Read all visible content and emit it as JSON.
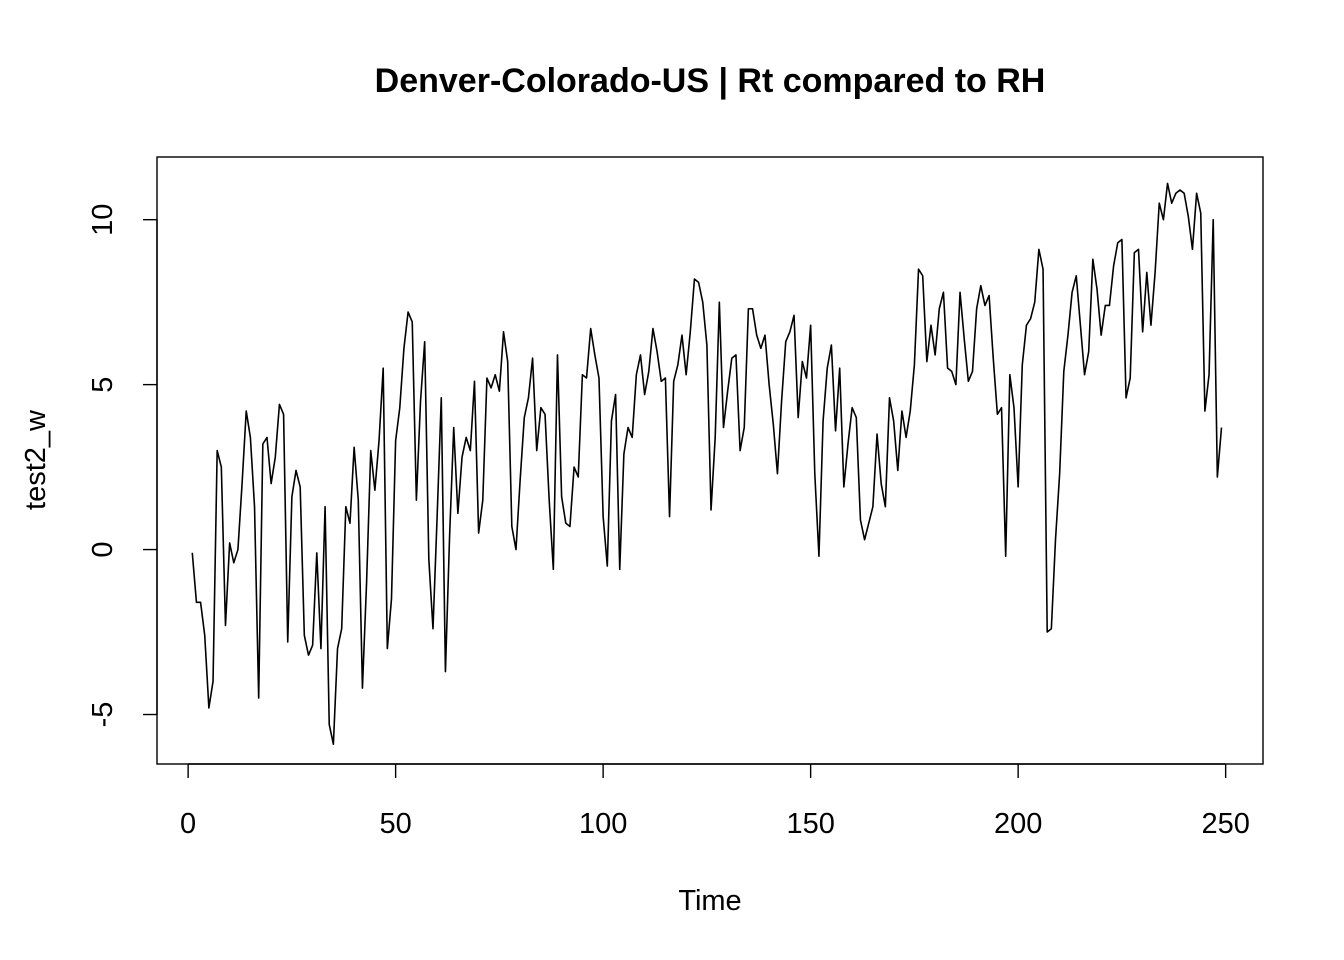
{
  "chart_data": {
    "type": "line",
    "title": "Denver-Colorado-US | Rt compared to RH",
    "xlabel": "Time",
    "ylabel": "test2_w",
    "xlim": [
      -7.5,
      259
    ],
    "ylim": [
      -6.5,
      11.9
    ],
    "x_ticks": [
      0,
      50,
      100,
      150,
      200,
      250
    ],
    "y_ticks": [
      -5,
      0,
      5,
      10
    ],
    "grid": false,
    "legend": "none",
    "x_start": 1,
    "series": [
      {
        "values": [
          -0.1,
          -1.6,
          -1.6,
          -2.6,
          -4.8,
          -4.0,
          3.0,
          2.5,
          -2.3,
          0.2,
          -0.4,
          0.0,
          2.0,
          4.2,
          3.4,
          1.3,
          -4.5,
          3.2,
          3.4,
          2.0,
          2.8,
          4.4,
          4.1,
          -2.8,
          1.6,
          2.4,
          1.9,
          -2.6,
          -3.2,
          -2.9,
          -0.1,
          -3.0,
          1.3,
          -5.3,
          -5.9,
          -3.0,
          -2.4,
          1.3,
          0.8,
          3.1,
          1.5,
          -4.2,
          -1.0,
          3.0,
          1.8,
          3.3,
          5.5,
          -3.0,
          -1.5,
          3.3,
          4.3,
          6.1,
          7.2,
          6.9,
          1.5,
          4.5,
          6.3,
          -0.3,
          -2.4,
          1.0,
          4.6,
          -3.7,
          0.4,
          3.7,
          1.1,
          2.8,
          3.4,
          3.0,
          5.1,
          0.5,
          1.5,
          5.2,
          4.9,
          5.3,
          4.8,
          6.6,
          5.7,
          0.7,
          0.0,
          2.1,
          4.0,
          4.6,
          5.8,
          3.0,
          4.3,
          4.1,
          1.5,
          -0.6,
          5.9,
          1.6,
          0.8,
          0.7,
          2.5,
          2.2,
          5.3,
          5.2,
          6.7,
          5.9,
          5.2,
          1.0,
          -0.5,
          3.9,
          4.7,
          -0.6,
          2.9,
          3.7,
          3.4,
          5.3,
          5.9,
          4.7,
          5.4,
          6.7,
          6.0,
          5.1,
          5.2,
          1.0,
          5.1,
          5.6,
          6.5,
          5.3,
          6.6,
          8.2,
          8.1,
          7.5,
          6.2,
          1.2,
          3.4,
          7.5,
          3.7,
          4.8,
          5.8,
          5.9,
          3.0,
          3.7,
          7.3,
          7.3,
          6.5,
          6.1,
          6.5,
          5.0,
          3.8,
          2.3,
          4.5,
          6.3,
          6.6,
          7.1,
          4.0,
          5.7,
          5.2,
          6.8,
          2.3,
          -0.2,
          3.9,
          5.5,
          6.2,
          3.6,
          5.5,
          1.9,
          3.2,
          4.3,
          4.0,
          0.9,
          0.3,
          0.8,
          1.3,
          3.5,
          2.0,
          1.3,
          4.6,
          3.9,
          2.4,
          4.2,
          3.4,
          4.2,
          5.6,
          8.5,
          8.3,
          5.7,
          6.8,
          5.9,
          7.3,
          7.8,
          5.5,
          5.4,
          5.0,
          7.8,
          6.4,
          5.1,
          5.4,
          7.3,
          8.0,
          7.4,
          7.7,
          5.8,
          4.1,
          4.3,
          -0.2,
          5.3,
          4.3,
          1.9,
          5.6,
          6.8,
          7.0,
          7.5,
          9.1,
          8.5,
          -2.5,
          -2.4,
          0.3,
          2.3,
          5.4,
          6.5,
          7.8,
          8.3,
          6.8,
          5.3,
          6.0,
          8.8,
          7.9,
          6.5,
          7.4,
          7.4,
          8.6,
          9.3,
          9.4,
          4.6,
          5.2,
          9.0,
          9.1,
          6.6,
          8.4,
          6.8,
          8.4,
          10.5,
          10.0,
          11.1,
          10.5,
          10.8,
          10.9,
          10.8,
          10.1,
          9.1,
          10.8,
          10.2,
          4.2,
          5.3,
          10.0,
          2.2,
          3.7
        ]
      }
    ]
  }
}
